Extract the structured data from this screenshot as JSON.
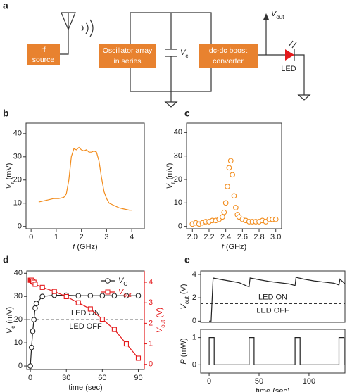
{
  "diagram": {
    "panel_label": "a",
    "blocks": [
      [
        "rf",
        "source"
      ],
      [
        "Oscillator array",
        "in series"
      ],
      [
        "dc-dc boost",
        "converter"
      ]
    ],
    "capacitor_label": [
      "V",
      "c"
    ],
    "output_label": [
      "V",
      "out"
    ],
    "led_label": "LED"
  },
  "chart_data": [
    {
      "type": "line",
      "panel_label": "b",
      "xlabel": [
        "f",
        "",
        " (GHz)"
      ],
      "ylabel": [
        "V",
        "r",
        " (mV)"
      ],
      "xlim": [
        -0.2,
        4.5
      ],
      "xticks": [
        0,
        1,
        2,
        3,
        4
      ],
      "ylim": [
        -1,
        44.5
      ],
      "yticks": [
        0,
        10,
        20,
        30,
        40
      ],
      "series": [
        {
          "color": "#f28c1c",
          "x": [
            0.3,
            0.5,
            0.7,
            0.9,
            1.1,
            1.3,
            1.4,
            1.5,
            1.6,
            1.7,
            1.8,
            1.9,
            2.0,
            2.1,
            2.2,
            2.3,
            2.4,
            2.5,
            2.6,
            2.7,
            2.8,
            2.9,
            3.0,
            3.1,
            3.3,
            3.5,
            3.7,
            3.9,
            4.0
          ],
          "values": [
            10.5,
            11,
            11.5,
            12,
            12,
            12.5,
            14,
            20,
            30,
            33.5,
            33,
            34,
            33,
            32.5,
            33,
            32,
            32,
            32.5,
            32,
            28,
            21,
            15,
            12,
            10,
            9,
            8,
            7.5,
            7,
            7
          ]
        }
      ]
    },
    {
      "type": "scatter",
      "panel_label": "c",
      "xlabel": [
        "f",
        "",
        " (GHz)"
      ],
      "ylabel": [
        "V",
        "r",
        " (mV)"
      ],
      "xlim": [
        1.93,
        3.07
      ],
      "xticks": [
        {
          "value": 2,
          "label": "2.0"
        },
        2.2,
        2.4,
        2.6,
        2.8,
        {
          "value": 3,
          "label": "3.0"
        }
      ],
      "ylim": [
        -1,
        44
      ],
      "yticks": [
        0,
        10,
        20,
        30,
        40
      ],
      "series": [
        {
          "color": "#f28c1c",
          "marker": "circle",
          "x": [
            2.0,
            2.04,
            2.08,
            2.12,
            2.16,
            2.2,
            2.24,
            2.28,
            2.32,
            2.36,
            2.38,
            2.4,
            2.42,
            2.44,
            2.46,
            2.48,
            2.5,
            2.52,
            2.54,
            2.56,
            2.6,
            2.64,
            2.68,
            2.72,
            2.76,
            2.8,
            2.84,
            2.88,
            2.92,
            2.96,
            3.0
          ],
          "values": [
            1,
            1.5,
            1,
            1.5,
            2,
            2,
            2.5,
            2.5,
            3,
            4,
            6,
            10,
            17,
            25,
            28,
            22,
            13,
            8,
            5,
            4,
            3,
            2.5,
            2,
            2,
            2,
            2,
            2.5,
            2,
            3,
            3,
            3
          ]
        }
      ]
    },
    {
      "type": "line",
      "panel_label": "d",
      "xlabel": "time (sec)",
      "ylabel": [
        "V",
        "c",
        " (mV)"
      ],
      "y2label": [
        "V",
        "out",
        " (V)"
      ],
      "xlim": [
        -3,
        95
      ],
      "xticks": [
        0,
        30,
        60,
        90
      ],
      "ylim": [
        -1.5,
        41
      ],
      "yticks": [
        0,
        10,
        20,
        30,
        40
      ],
      "y2lim": [
        -0.25,
        4.55
      ],
      "y2ticks": [
        0,
        1,
        2,
        3,
        4
      ],
      "y2color": "#e41a1c",
      "hline": 20,
      "annotations": [
        "LED ON",
        "LED OFF"
      ],
      "legend": "upper right",
      "series": [
        {
          "name": [
            "V",
            "C"
          ],
          "color": "#222222",
          "marker": "circle",
          "x": [
            0,
            1,
            2,
            3,
            4,
            5,
            10,
            20,
            30,
            40,
            50,
            60,
            70,
            80,
            90
          ],
          "values": [
            0,
            8,
            15,
            20,
            25,
            27,
            30,
            30.5,
            30.5,
            30.3,
            30.3,
            30.3,
            30.3,
            30.3,
            30.3
          ]
        },
        {
          "name": [
            "V",
            "out"
          ],
          "color": "#e41a1c",
          "marker": "square",
          "axis": "y2",
          "x": [
            0,
            0.5,
            1,
            2,
            3,
            4,
            10,
            20,
            30,
            40,
            50,
            60,
            70,
            80,
            90
          ],
          "values": [
            4.1,
            4.1,
            4.1,
            4.05,
            4.0,
            3.9,
            3.75,
            3.55,
            3.3,
            3.0,
            2.7,
            2.2,
            1.7,
            1.0,
            0.3
          ]
        }
      ]
    },
    {
      "type": "line",
      "panel_label": "e",
      "ylabel": [
        "V",
        "out",
        " (V)"
      ],
      "xlim": [
        -8.5,
        136
      ],
      "ylim": [
        -0.1,
        4.3
      ],
      "yticks": [
        0,
        2,
        4
      ],
      "hline": 1.5,
      "annotations": [
        "LED ON",
        "LED OFF"
      ],
      "series": [
        {
          "color": "#222222",
          "x": [
            0,
            2,
            4,
            10,
            20,
            30,
            38,
            40,
            41,
            50,
            60,
            70,
            80,
            86,
            87,
            95,
            105,
            115,
            125,
            130,
            131,
            136
          ],
          "values": [
            0,
            0,
            3.7,
            3.6,
            3.45,
            3.3,
            3.0,
            2.95,
            3.7,
            3.55,
            3.4,
            3.3,
            3.2,
            3.05,
            3.75,
            3.6,
            3.45,
            3.35,
            3.25,
            3.1,
            3.6,
            3.2
          ]
        }
      ]
    },
    {
      "type": "line",
      "xlabel": "time (sec)",
      "ylabel": [
        "P",
        "",
        " (mW)"
      ],
      "xlim": [
        -8.5,
        136
      ],
      "xticks": [
        0,
        50,
        100
      ],
      "ylim": [
        -0.3,
        1.3
      ],
      "yticks": [
        0,
        1
      ],
      "series": [
        {
          "color": "#222222",
          "x": [
            0,
            0,
            5,
            5,
            40,
            40,
            45,
            45,
            86,
            86,
            91,
            91,
            130,
            130,
            135,
            135
          ],
          "values": [
            0,
            1,
            1,
            0,
            0,
            1,
            1,
            0,
            0,
            1,
            1,
            0,
            0,
            1,
            1,
            0
          ]
        }
      ]
    }
  ]
}
